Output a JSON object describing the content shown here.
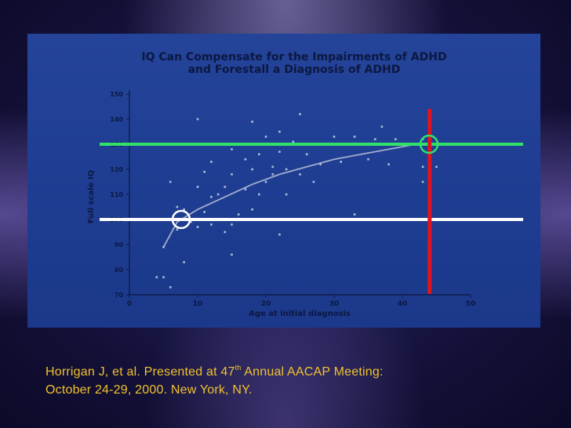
{
  "chart_data": {
    "type": "scatter",
    "title_lines": [
      "IQ Can Compensate for the Impairments of ADHD",
      "and Forestall a Diagnosis of ADHD"
    ],
    "xlabel": "Age at initial diagnosis",
    "ylabel": "Full scale IQ",
    "xlim": [
      0,
      50
    ],
    "ylim": [
      70,
      150
    ],
    "x_ticks": [
      0,
      10,
      20,
      30,
      40,
      50
    ],
    "y_ticks": [
      70,
      80,
      90,
      100,
      110,
      120,
      130,
      140,
      150
    ],
    "grid": false,
    "points": [
      [
        4,
        77
      ],
      [
        5,
        77
      ],
      [
        5,
        89
      ],
      [
        6,
        115
      ],
      [
        6,
        73
      ],
      [
        7,
        96
      ],
      [
        7,
        105
      ],
      [
        8,
        83
      ],
      [
        8,
        104
      ],
      [
        9,
        99
      ],
      [
        10,
        97
      ],
      [
        10,
        113
      ],
      [
        10,
        140
      ],
      [
        11,
        119
      ],
      [
        11,
        103
      ],
      [
        12,
        98
      ],
      [
        12,
        109
      ],
      [
        12,
        123
      ],
      [
        13,
        110
      ],
      [
        14,
        113
      ],
      [
        14,
        95
      ],
      [
        15,
        98
      ],
      [
        15,
        118
      ],
      [
        16,
        102
      ],
      [
        15,
        128
      ],
      [
        17,
        124
      ],
      [
        17,
        112
      ],
      [
        18,
        120
      ],
      [
        18,
        139
      ],
      [
        18,
        104
      ],
      [
        19,
        110
      ],
      [
        19,
        126
      ],
      [
        20,
        115
      ],
      [
        20,
        100
      ],
      [
        20,
        133
      ],
      [
        21,
        121
      ],
      [
        21,
        118
      ],
      [
        22,
        135
      ],
      [
        22,
        127
      ],
      [
        23,
        120
      ],
      [
        23,
        110
      ],
      [
        22,
        94
      ],
      [
        24,
        131
      ],
      [
        25,
        142
      ],
      [
        25,
        118
      ],
      [
        26,
        126
      ],
      [
        28,
        122
      ],
      [
        30,
        133
      ],
      [
        31,
        123
      ],
      [
        32,
        130
      ],
      [
        33,
        133
      ],
      [
        33,
        102
      ],
      [
        35,
        124
      ],
      [
        36,
        132
      ],
      [
        37,
        137
      ],
      [
        38,
        122
      ],
      [
        39,
        132
      ],
      [
        43,
        132
      ],
      [
        43,
        121
      ],
      [
        43,
        115
      ],
      [
        44,
        130
      ],
      [
        45,
        121
      ],
      [
        15,
        86
      ],
      [
        27,
        115
      ]
    ],
    "fit_curve": [
      [
        5,
        89
      ],
      [
        7,
        99
      ],
      [
        10,
        104
      ],
      [
        14,
        109
      ],
      [
        18,
        114
      ],
      [
        22,
        118
      ],
      [
        26,
        121
      ],
      [
        30,
        124
      ],
      [
        34,
        126
      ],
      [
        38,
        128
      ],
      [
        42,
        130
      ]
    ],
    "overlays": {
      "green_line_iq": 130,
      "white_line_iq": 100,
      "red_line_age": 44,
      "colors": {
        "green": "#33e06a",
        "white": "#ffffff",
        "red": "#e0141e"
      }
    }
  },
  "caption": {
    "line1_before": "Horrigan J, et al. Presented at 47",
    "line1_sup": "th",
    "line1_after": " Annual AACAP Meeting:",
    "line2": "October 24-29, 2000.  New York, NY."
  },
  "colors": {
    "chart_bg": "#1f3e93",
    "title_text": "#0c1840",
    "caption_text": "#f2c22e"
  }
}
